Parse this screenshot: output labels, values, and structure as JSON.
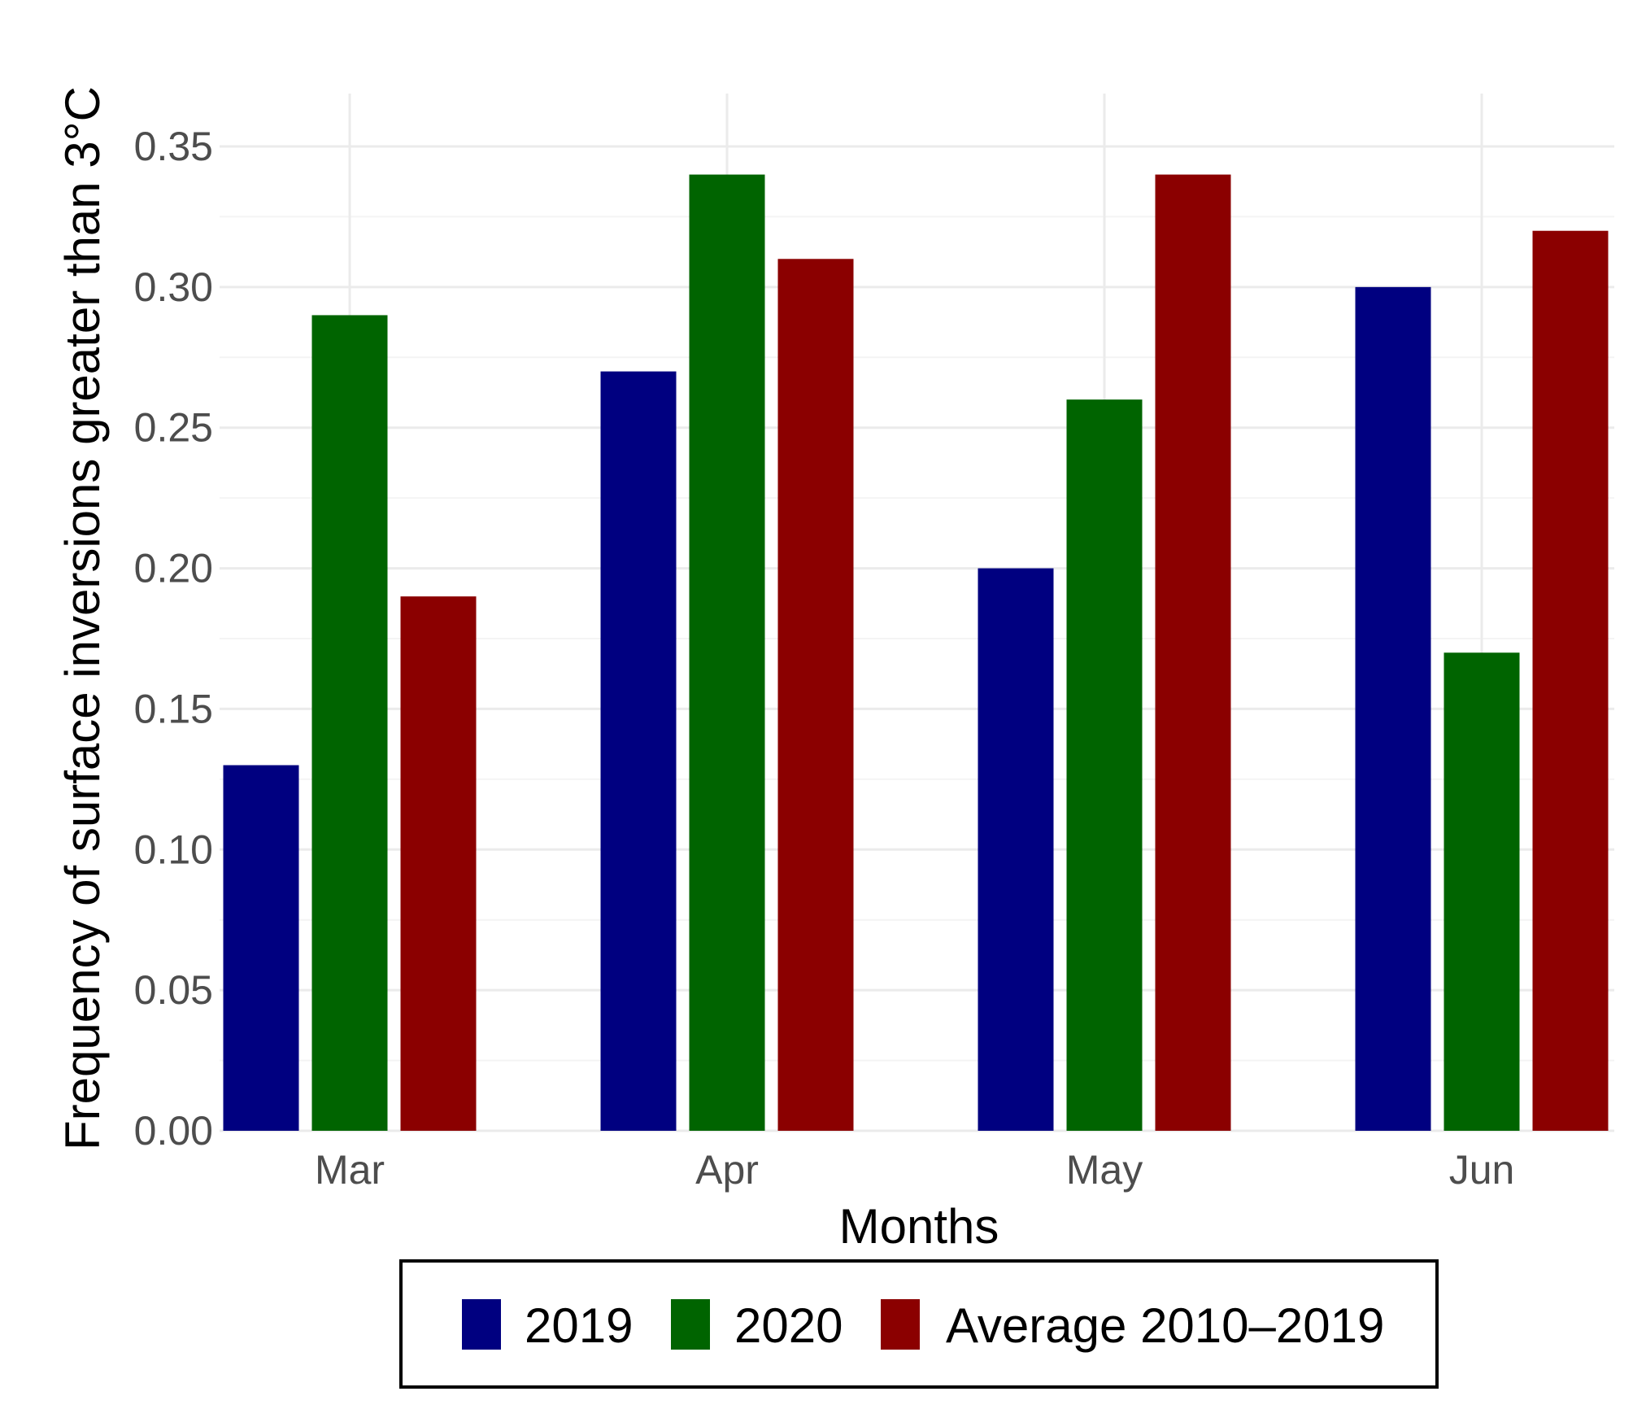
{
  "chart_data": {
    "type": "bar",
    "title": "",
    "xlabel": "Months",
    "ylabel": "Frequency of surface inversions greater than 3°C",
    "categories": [
      "Mar",
      "Apr",
      "May",
      "Jun"
    ],
    "ylim": [
      0,
      0.35
    ],
    "yticks": [
      "0.00",
      "0.05",
      "0.10",
      "0.15",
      "0.20",
      "0.25",
      "0.30",
      "0.35"
    ],
    "grid": true,
    "legend_position": "bottom",
    "series": [
      {
        "name": "2019",
        "color": "#000080",
        "values": [
          0.13,
          0.27,
          0.2,
          0.3
        ]
      },
      {
        "name": "2020",
        "color": "#006400",
        "values": [
          0.29,
          0.34,
          0.26,
          0.17
        ]
      },
      {
        "name": "Average 2010–2019",
        "color": "#8b0000",
        "values": [
          0.19,
          0.31,
          0.34,
          0.32
        ]
      }
    ]
  }
}
